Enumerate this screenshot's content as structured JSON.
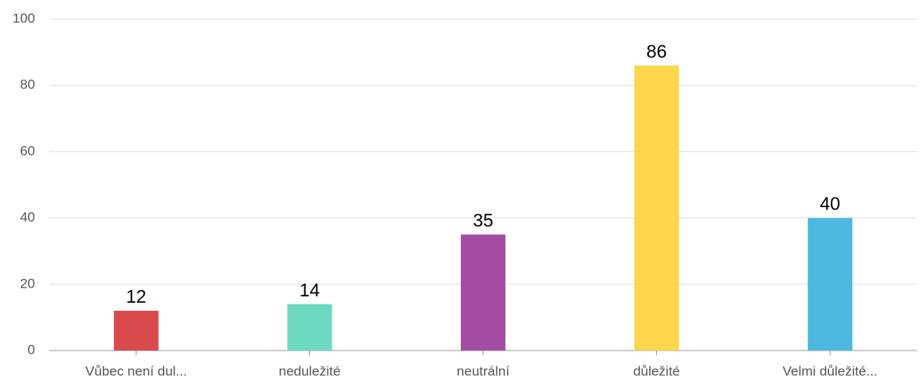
{
  "chart_data": {
    "type": "bar",
    "categories": [
      "Vůbec není dul...",
      "neduležité",
      "neutrální",
      "důležité",
      "Velmi důležité..."
    ],
    "values": [
      12,
      14,
      35,
      86,
      40
    ],
    "colors": [
      "#d94a4c",
      "#6dd9c1",
      "#a54ca4",
      "#ffd54c",
      "#4db9e1"
    ],
    "ylim": [
      0,
      100
    ],
    "yticks": [
      0,
      20,
      40,
      60,
      80,
      100
    ],
    "grid": true
  }
}
